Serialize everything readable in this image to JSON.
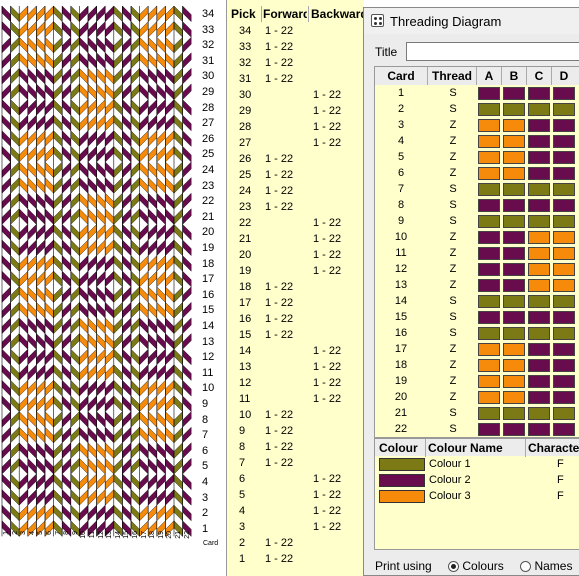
{
  "colors": {
    "colour_1": "#7c7a14",
    "colour_2": "#690c4e",
    "colour_3": "#f68a0a"
  },
  "pattern": {
    "card_axis_label": "Card",
    "pick_numbers": [
      "34",
      "33",
      "32",
      "31",
      "30",
      "29",
      "28",
      "27",
      "26",
      "25",
      "24",
      "23",
      "22",
      "21",
      "20",
      "19",
      "18",
      "17",
      "16",
      "15",
      "14",
      "13",
      "12",
      "11",
      "10",
      "9",
      "8",
      "7",
      "6",
      "5",
      "4",
      "3",
      "2",
      "1"
    ],
    "card_numbers": [
      "1",
      "2",
      "3",
      "4",
      "5",
      "6",
      "7",
      "8",
      "9",
      "10",
      "11",
      "12",
      "13",
      "14",
      "15",
      "16",
      "17",
      "18",
      "19",
      "20",
      "21",
      "22"
    ]
  },
  "pick_table": {
    "headers": {
      "pick": "Pick",
      "forward": "Forward",
      "backward": "Backward"
    },
    "rows": [
      {
        "pick": "34",
        "forward": "1 - 22",
        "backward": ""
      },
      {
        "pick": "33",
        "forward": "1 - 22",
        "backward": ""
      },
      {
        "pick": "32",
        "forward": "1 - 22",
        "backward": ""
      },
      {
        "pick": "31",
        "forward": "1 - 22",
        "backward": ""
      },
      {
        "pick": "30",
        "forward": "",
        "backward": "1 - 22"
      },
      {
        "pick": "29",
        "forward": "",
        "backward": "1 - 22"
      },
      {
        "pick": "28",
        "forward": "",
        "backward": "1 - 22"
      },
      {
        "pick": "27",
        "forward": "",
        "backward": "1 - 22"
      },
      {
        "pick": "26",
        "forward": "1 - 22",
        "backward": ""
      },
      {
        "pick": "25",
        "forward": "1 - 22",
        "backward": ""
      },
      {
        "pick": "24",
        "forward": "1 - 22",
        "backward": ""
      },
      {
        "pick": "23",
        "forward": "1 - 22",
        "backward": ""
      },
      {
        "pick": "22",
        "forward": "",
        "backward": "1 - 22"
      },
      {
        "pick": "21",
        "forward": "",
        "backward": "1 - 22"
      },
      {
        "pick": "20",
        "forward": "",
        "backward": "1 - 22"
      },
      {
        "pick": "19",
        "forward": "",
        "backward": "1 - 22"
      },
      {
        "pick": "18",
        "forward": "1 - 22",
        "backward": ""
      },
      {
        "pick": "17",
        "forward": "1 - 22",
        "backward": ""
      },
      {
        "pick": "16",
        "forward": "1 - 22",
        "backward": ""
      },
      {
        "pick": "15",
        "forward": "1 - 22",
        "backward": ""
      },
      {
        "pick": "14",
        "forward": "",
        "backward": "1 - 22"
      },
      {
        "pick": "13",
        "forward": "",
        "backward": "1 - 22"
      },
      {
        "pick": "12",
        "forward": "",
        "backward": "1 - 22"
      },
      {
        "pick": "11",
        "forward": "",
        "backward": "1 - 22"
      },
      {
        "pick": "10",
        "forward": "1 - 22",
        "backward": ""
      },
      {
        "pick": "9",
        "forward": "1 - 22",
        "backward": ""
      },
      {
        "pick": "8",
        "forward": "1 - 22",
        "backward": ""
      },
      {
        "pick": "7",
        "forward": "1 - 22",
        "backward": ""
      },
      {
        "pick": "6",
        "forward": "",
        "backward": "1 - 22"
      },
      {
        "pick": "5",
        "forward": "",
        "backward": "1 - 22"
      },
      {
        "pick": "4",
        "forward": "",
        "backward": "1 - 22"
      },
      {
        "pick": "3",
        "forward": "",
        "backward": "1 - 22"
      },
      {
        "pick": "2",
        "forward": "1 - 22",
        "backward": ""
      },
      {
        "pick": "1",
        "forward": "1 - 22",
        "backward": ""
      }
    ]
  },
  "threading_window": {
    "title": "Threading Diagram",
    "title_field_label": "Title",
    "title_field_value": "",
    "card_headers": {
      "card": "Card",
      "thread": "Thread",
      "holes": [
        "A",
        "B",
        "C",
        "D"
      ]
    },
    "cards": [
      {
        "card": "1",
        "thread": "S",
        "holes": [
          2,
          2,
          2,
          2
        ]
      },
      {
        "card": "2",
        "thread": "S",
        "holes": [
          1,
          1,
          1,
          1
        ]
      },
      {
        "card": "3",
        "thread": "Z",
        "holes": [
          3,
          3,
          2,
          2
        ]
      },
      {
        "card": "4",
        "thread": "Z",
        "holes": [
          3,
          3,
          2,
          2
        ]
      },
      {
        "card": "5",
        "thread": "Z",
        "holes": [
          3,
          3,
          2,
          2
        ]
      },
      {
        "card": "6",
        "thread": "Z",
        "holes": [
          3,
          3,
          2,
          2
        ]
      },
      {
        "card": "7",
        "thread": "S",
        "holes": [
          1,
          1,
          1,
          1
        ]
      },
      {
        "card": "8",
        "thread": "S",
        "holes": [
          2,
          2,
          2,
          2
        ]
      },
      {
        "card": "9",
        "thread": "S",
        "holes": [
          1,
          1,
          1,
          1
        ]
      },
      {
        "card": "10",
        "thread": "Z",
        "holes": [
          2,
          2,
          3,
          3
        ]
      },
      {
        "card": "11",
        "thread": "Z",
        "holes": [
          2,
          2,
          3,
          3
        ]
      },
      {
        "card": "12",
        "thread": "Z",
        "holes": [
          2,
          2,
          3,
          3
        ]
      },
      {
        "card": "13",
        "thread": "Z",
        "holes": [
          2,
          2,
          3,
          3
        ]
      },
      {
        "card": "14",
        "thread": "S",
        "holes": [
          1,
          1,
          1,
          1
        ]
      },
      {
        "card": "15",
        "thread": "S",
        "holes": [
          2,
          2,
          2,
          2
        ]
      },
      {
        "card": "16",
        "thread": "S",
        "holes": [
          1,
          1,
          1,
          1
        ]
      },
      {
        "card": "17",
        "thread": "Z",
        "holes": [
          3,
          3,
          2,
          2
        ]
      },
      {
        "card": "18",
        "thread": "Z",
        "holes": [
          3,
          3,
          2,
          2
        ]
      },
      {
        "card": "19",
        "thread": "Z",
        "holes": [
          3,
          3,
          2,
          2
        ]
      },
      {
        "card": "20",
        "thread": "Z",
        "holes": [
          3,
          3,
          2,
          2
        ]
      },
      {
        "card": "21",
        "thread": "S",
        "holes": [
          1,
          1,
          1,
          1
        ]
      },
      {
        "card": "22",
        "thread": "S",
        "holes": [
          2,
          2,
          2,
          2
        ]
      }
    ],
    "colour_headers": {
      "colour": "Colour",
      "name": "Colour Name",
      "character": "Character"
    },
    "colours": [
      {
        "name": "Colour 1",
        "character": "F",
        "color": "#7c7a14"
      },
      {
        "name": "Colour 2",
        "character": "F",
        "color": "#690c4e"
      },
      {
        "name": "Colour 3",
        "character": "F",
        "color": "#f68a0a"
      }
    ],
    "print_using": {
      "label": "Print using",
      "options": [
        {
          "label": "Colours",
          "selected": true
        },
        {
          "label": "Names",
          "selected": false
        },
        {
          "label": "",
          "selected": false
        }
      ]
    }
  }
}
